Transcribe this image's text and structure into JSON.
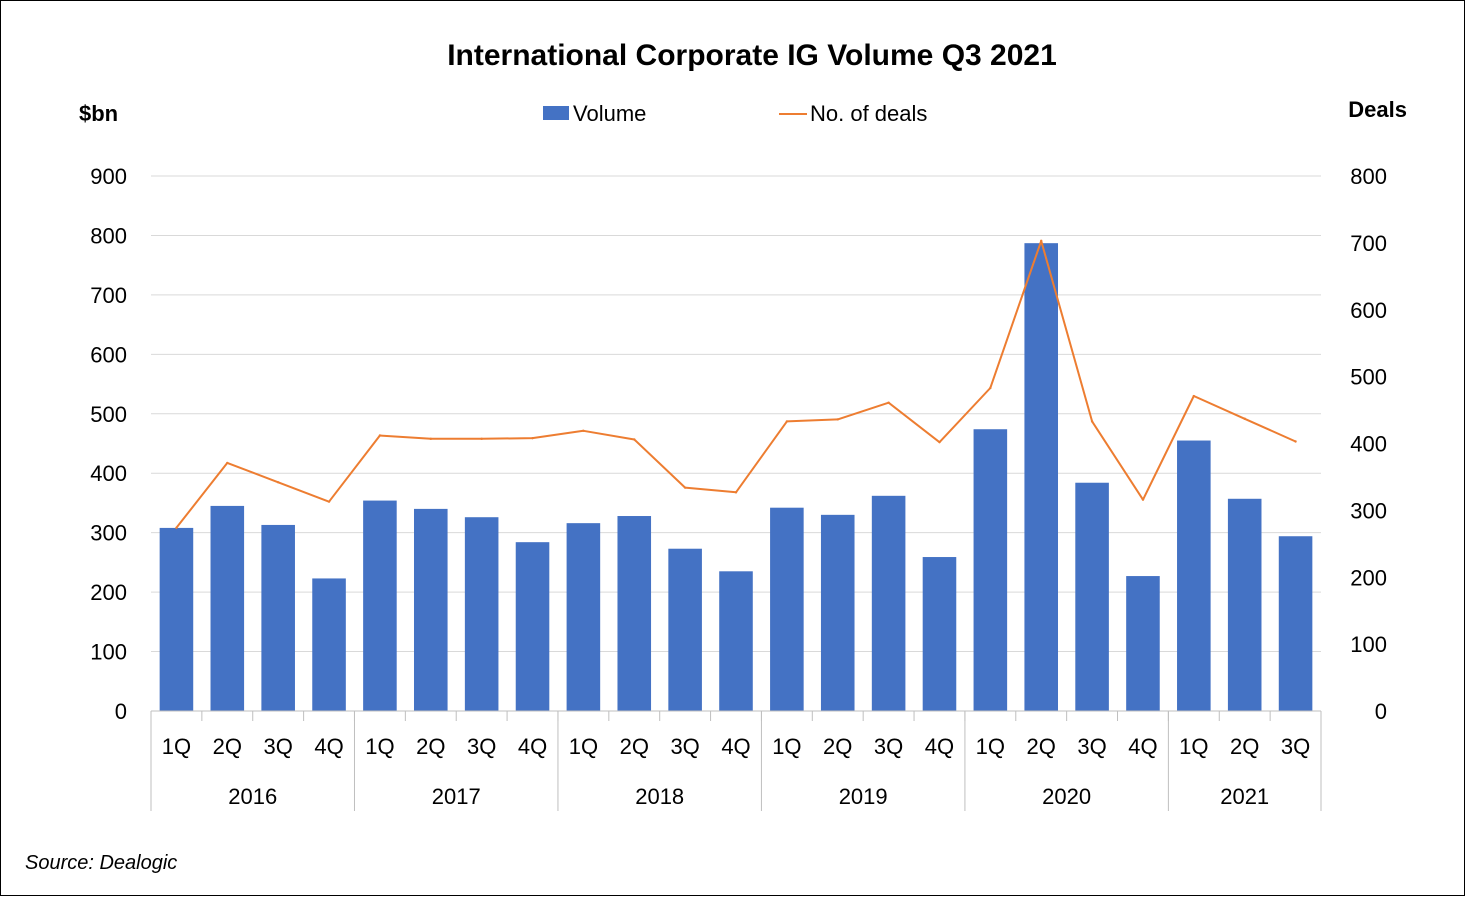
{
  "colors": {
    "bar": "#4472C4",
    "line": "#ED7D31",
    "grid": "#D9D9D9",
    "axis": "#BFBFBF"
  },
  "chart_data": {
    "type": "bar",
    "title": "International Corporate IG Volume Q3 2021",
    "ylabel_left": "$bn",
    "ylabel_right": "Deals",
    "ylim_left": [
      0,
      900
    ],
    "ylim_right": [
      0,
      800
    ],
    "yticks_left": [
      "0",
      "100",
      "200",
      "300",
      "400",
      "500",
      "600",
      "700",
      "800",
      "900"
    ],
    "yticks_right": [
      "0",
      "100",
      "200",
      "300",
      "400",
      "500",
      "600",
      "700",
      "800"
    ],
    "grid": true,
    "legend_position": "top-center",
    "categories": [
      "1Q",
      "2Q",
      "3Q",
      "4Q",
      "1Q",
      "2Q",
      "3Q",
      "4Q",
      "1Q",
      "2Q",
      "3Q",
      "4Q",
      "1Q",
      "2Q",
      "3Q",
      "4Q",
      "1Q",
      "2Q",
      "3Q",
      "4Q",
      "1Q",
      "2Q",
      "3Q"
    ],
    "years": [
      {
        "label": "2016",
        "quarters": 4
      },
      {
        "label": "2017",
        "quarters": 4
      },
      {
        "label": "2018",
        "quarters": 4
      },
      {
        "label": "2019",
        "quarters": 4
      },
      {
        "label": "2020",
        "quarters": 4
      },
      {
        "label": "2021",
        "quarters": 3
      }
    ],
    "series": [
      {
        "name": "Volume",
        "type": "bar",
        "axis": "left",
        "values": [
          308,
          345,
          313,
          223,
          354,
          340,
          326,
          284,
          316,
          328,
          273,
          235,
          342,
          330,
          362,
          259,
          474,
          787,
          384,
          227,
          455,
          357,
          294
        ]
      },
      {
        "name": "No. of deals",
        "type": "line",
        "axis": "right",
        "values": [
          274,
          371,
          342,
          313,
          412,
          407,
          407,
          408,
          419,
          406,
          334,
          327,
          433,
          436,
          461,
          402,
          483,
          703,
          433,
          316,
          471,
          437,
          403
        ]
      }
    ]
  },
  "footer": {
    "source": "Source: Dealogic"
  }
}
